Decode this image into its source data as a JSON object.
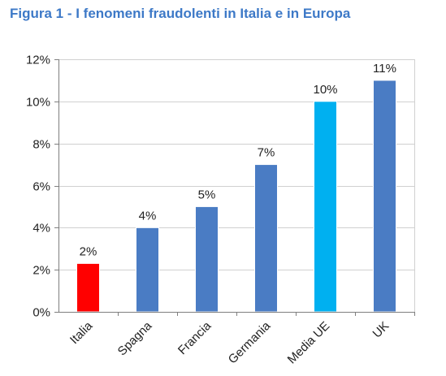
{
  "figure": {
    "title": "Figura 1 - I fenomeni fraudolenti in Italia e in Europa"
  },
  "colors": {
    "title": "#3d79c7",
    "default_bar": "#4a7cc4",
    "italia_bar": "#ff0000",
    "media_ue_bar": "#00b0f0",
    "axis": "#7f7f7f",
    "gridline": "#d0d0d0"
  },
  "chart_data": {
    "type": "bar",
    "title": "",
    "xlabel": "",
    "ylabel": "",
    "categories": [
      "Italia",
      "Spagna",
      "Francia",
      "Germania",
      "Media UE",
      "UK"
    ],
    "values": [
      2.3,
      4,
      5,
      7,
      10,
      11
    ],
    "data_labels": [
      "2%",
      "4%",
      "5%",
      "7%",
      "10%",
      "11%"
    ],
    "bar_colors": [
      "#ff0000",
      "#4a7cc4",
      "#4a7cc4",
      "#4a7cc4",
      "#00b0f0",
      "#4a7cc4"
    ],
    "ylim": [
      0,
      12
    ],
    "yticks": [
      0,
      2,
      4,
      6,
      8,
      10,
      12
    ],
    "ytick_labels": [
      "0%",
      "2%",
      "4%",
      "6%",
      "8%",
      "10%",
      "12%"
    ],
    "grid": true,
    "legend": "none"
  }
}
